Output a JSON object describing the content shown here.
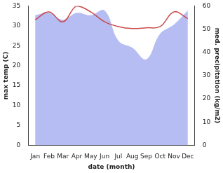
{
  "chart_data": {
    "type": "line",
    "x_label": "date (month)",
    "y_label": "max temp (C)",
    "y2_label": "med. precipitation (kg/m2)",
    "categories": [
      "Jan",
      "Feb",
      "Mar",
      "Apr",
      "May",
      "Jun",
      "Jul",
      "Aug",
      "Sep",
      "Oct",
      "Nov",
      "Dec"
    ],
    "series": [
      {
        "type": "area",
        "axis": "y2",
        "color": "#b1b9f1",
        "values": [
          56,
          57,
          54,
          57,
          56,
          58,
          45,
          42,
          37,
          48,
          52,
          58
        ]
      },
      {
        "type": "line",
        "axis": "y",
        "color": "#cc4a4a",
        "values": [
          31.5,
          33.5,
          31,
          35,
          33.5,
          31,
          29.8,
          29.3,
          29.5,
          29.8,
          33.5,
          31.8
        ]
      }
    ],
    "ylim": [
      0,
      35
    ],
    "yticks": [
      0,
      5,
      10,
      15,
      20,
      25,
      30,
      35
    ],
    "y2lim": [
      0,
      60
    ],
    "y2ticks": [
      0,
      10,
      20,
      30,
      40,
      50,
      60
    ],
    "grid": false
  }
}
